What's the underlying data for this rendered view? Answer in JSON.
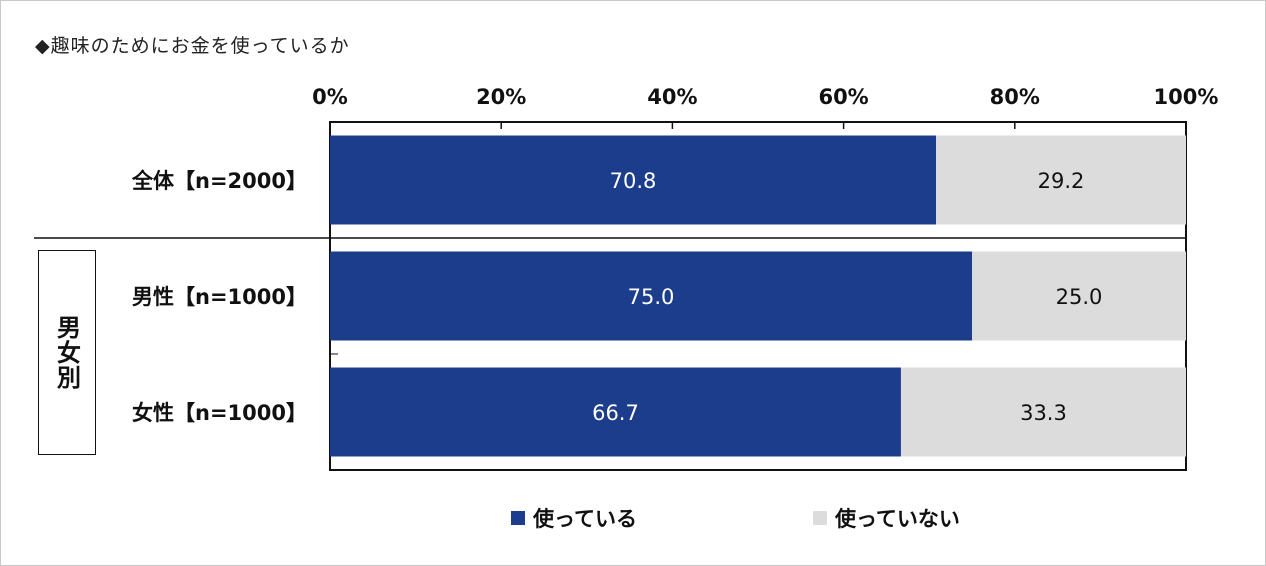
{
  "title": "◆趣味のためにお金を使っているか",
  "group_label": "男女別",
  "colors": {
    "using": "#1c3c8c",
    "not_using": "#dcdcdc",
    "text_dark": "#111111",
    "text_light": "#ffffff"
  },
  "legend": [
    {
      "label": "使っている",
      "color": "#1c3c8c"
    },
    {
      "label": "使っていない",
      "color": "#dcdcdc"
    }
  ],
  "chart_data": {
    "type": "bar",
    "orientation": "horizontal",
    "stacked": true,
    "title": "◆趣味のためにお金を使っているか",
    "categories": [
      "全体【n=2000】",
      "男性【n=1000】",
      "女性【n=1000】"
    ],
    "series": [
      {
        "name": "使っている",
        "values": [
          70.8,
          75.0,
          66.7
        ],
        "labels": [
          "70.8",
          "75.0",
          "66.7"
        ],
        "color": "#1c3c8c"
      },
      {
        "name": "使っていない",
        "values": [
          29.2,
          25.0,
          33.3
        ],
        "labels": [
          "29.2",
          "25.0",
          "33.3"
        ],
        "color": "#dcdcdc"
      }
    ],
    "xlim": [
      0,
      100
    ],
    "x_ticks": [
      "0%",
      "20%",
      "40%",
      "60%",
      "80%",
      "100%"
    ],
    "x_axis_position": "top",
    "legend_position": "bottom",
    "grid": false
  }
}
